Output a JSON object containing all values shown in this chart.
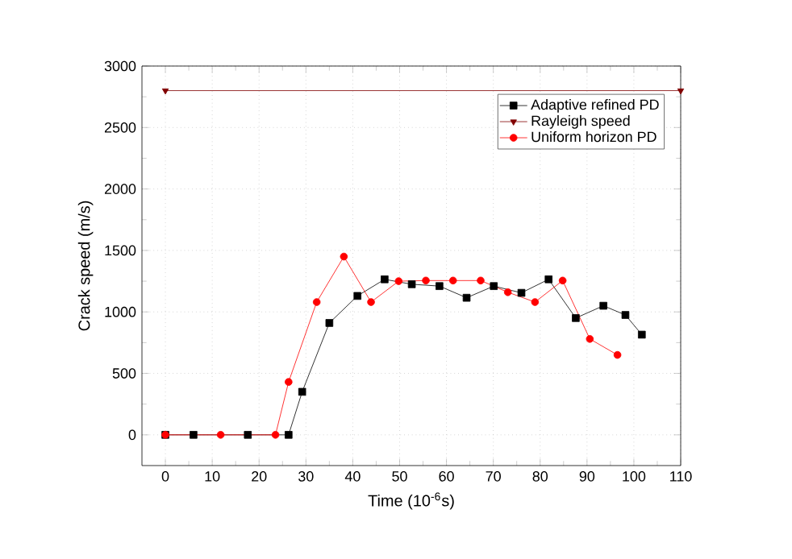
{
  "chart_data": {
    "type": "line",
    "xlabel": "Time (10$^{-6}$s)",
    "ylabel": "Crack speed (m/s)",
    "xlim": [
      -5,
      110
    ],
    "ylim": [
      -250,
      3000
    ],
    "xticks": [
      0,
      10,
      20,
      30,
      40,
      50,
      60,
      70,
      80,
      90,
      100,
      110
    ],
    "yticks": [
      0,
      500,
      1000,
      1500,
      2000,
      2500,
      3000
    ],
    "grid": true,
    "legend": "top right",
    "line_style": "solid",
    "series": [
      {
        "name": "Adaptive refined PD",
        "color": "#000000",
        "marker": "square",
        "x": [
          0,
          6,
          17.6,
          26.3,
          29.2,
          35,
          41,
          46.8,
          52.6,
          58.5,
          64.3,
          70.1,
          76,
          81.8,
          87.6,
          93.5,
          98.2,
          101.7
        ],
        "values": [
          0,
          0,
          0,
          0,
          350,
          910,
          1130,
          1265,
          1225,
          1210,
          1115,
          1210,
          1155,
          1265,
          950,
          1050,
          975,
          815
        ]
      },
      {
        "name": "Rayleigh speed",
        "color": "#800000",
        "marker": "triangle",
        "x": [
          0,
          110
        ],
        "values": [
          2800,
          2800
        ]
      },
      {
        "name": "Uniform horizon PD",
        "color": "#ff0000",
        "marker": "circle",
        "x": [
          0,
          11.8,
          23.5,
          26.3,
          32.3,
          38.1,
          43.9,
          49.8,
          55.6,
          61.4,
          67.3,
          73.1,
          78.9,
          84.8,
          90.6,
          96.5
        ],
        "values": [
          0,
          0,
          0,
          430,
          1080,
          1450,
          1080,
          1250,
          1255,
          1255,
          1255,
          1160,
          1080,
          1255,
          780,
          650
        ]
      }
    ]
  }
}
